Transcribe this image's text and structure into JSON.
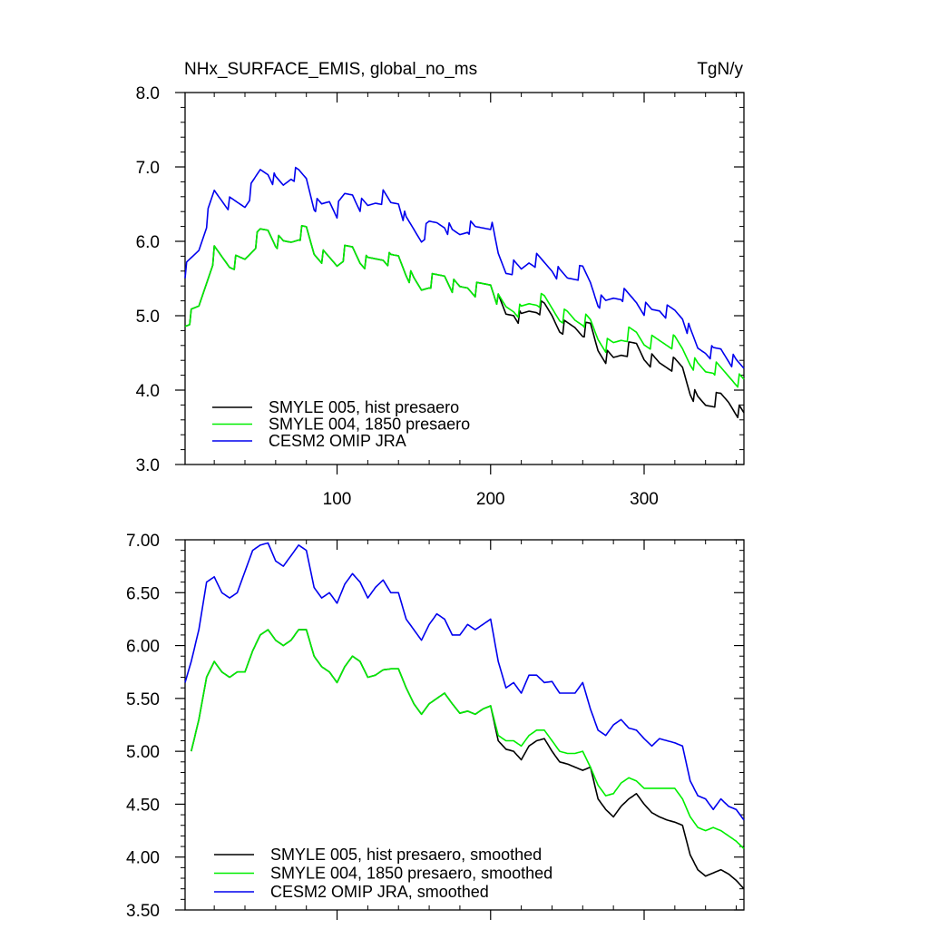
{
  "chart_data": [
    {
      "type": "line",
      "title": "NHx_SURFACE_EMIS, global_no_ms",
      "units": "TgN/y",
      "xlim": [
        1,
        365
      ],
      "ylim": [
        3.0,
        8.0
      ],
      "xticks": [
        100,
        200,
        300
      ],
      "xtick_labels": [
        "100",
        "200",
        "300"
      ],
      "yticks": [
        3.0,
        4.0,
        5.0,
        6.0,
        7.0,
        8.0
      ],
      "ytick_labels": [
        "3.0",
        "4.0",
        "5.0",
        "6.0",
        "7.0",
        "8.0"
      ],
      "legend_position": "bottom-left",
      "noise": 0.1,
      "series": [
        {
          "name": "SMYLE 005, hist presaero",
          "color": "#000000",
          "x": [
            1,
            10,
            20,
            30,
            40,
            50,
            55,
            60,
            65,
            70,
            75,
            80,
            85,
            90,
            95,
            100,
            105,
            110,
            115,
            120,
            125,
            130,
            135,
            140,
            145,
            150,
            155,
            160,
            165,
            170,
            175,
            180,
            185,
            190,
            195,
            200,
            205,
            210,
            215,
            220,
            225,
            230,
            235,
            240,
            245,
            250,
            255,
            260,
            265,
            270,
            275,
            280,
            285,
            290,
            295,
            300,
            305,
            310,
            315,
            320,
            325,
            330,
            335,
            340,
            345,
            350,
            355,
            360,
            365
          ],
          "y": [
            4.9,
            5.1,
            5.85,
            5.7,
            5.75,
            6.1,
            6.15,
            6.0,
            5.95,
            6.0,
            6.1,
            6.15,
            5.85,
            5.8,
            5.75,
            5.7,
            5.85,
            5.9,
            5.75,
            5.7,
            5.75,
            5.8,
            5.75,
            5.8,
            5.6,
            5.45,
            5.35,
            5.45,
            5.5,
            5.55,
            5.4,
            5.35,
            5.4,
            5.35,
            5.4,
            5.45,
            5.2,
            5.0,
            5.05,
            4.95,
            5.05,
            5.1,
            5.1,
            5.0,
            4.85,
            4.85,
            4.85,
            4.8,
            4.85,
            4.55,
            4.45,
            4.4,
            4.5,
            4.55,
            4.6,
            4.45,
            4.4,
            4.35,
            4.35,
            4.35,
            4.3,
            4.0,
            3.85,
            3.8,
            3.85,
            3.9,
            3.85,
            3.75,
            3.65
          ]
        },
        {
          "name": "SMYLE 004, 1850 presaero",
          "color": "#00ee00",
          "x": [
            1,
            10,
            20,
            30,
            40,
            50,
            55,
            60,
            65,
            70,
            75,
            80,
            85,
            90,
            95,
            100,
            105,
            110,
            115,
            120,
            125,
            130,
            135,
            140,
            145,
            150,
            155,
            160,
            165,
            170,
            175,
            180,
            185,
            190,
            195,
            200,
            205,
            210,
            215,
            220,
            225,
            230,
            235,
            240,
            245,
            250,
            255,
            260,
            265,
            270,
            275,
            280,
            285,
            290,
            295,
            300,
            305,
            310,
            315,
            320,
            325,
            330,
            335,
            340,
            345,
            350,
            355,
            360,
            365
          ],
          "y": [
            4.9,
            5.1,
            5.85,
            5.7,
            5.75,
            6.1,
            6.15,
            6.0,
            5.95,
            6.0,
            6.1,
            6.15,
            5.85,
            5.8,
            5.75,
            5.7,
            5.85,
            5.9,
            5.75,
            5.7,
            5.75,
            5.8,
            5.75,
            5.8,
            5.6,
            5.45,
            5.35,
            5.45,
            5.5,
            5.55,
            5.4,
            5.35,
            5.4,
            5.35,
            5.4,
            5.45,
            5.2,
            5.1,
            5.1,
            5.05,
            5.15,
            5.2,
            5.2,
            5.1,
            5.0,
            5.0,
            4.95,
            4.95,
            4.9,
            4.7,
            4.6,
            4.6,
            4.7,
            4.75,
            4.75,
            4.65,
            4.65,
            4.65,
            4.65,
            4.65,
            4.55,
            4.4,
            4.3,
            4.25,
            4.3,
            4.25,
            4.2,
            4.15,
            4.1
          ]
        },
        {
          "name": "CESM2 OMIP JRA",
          "color": "#0000ee",
          "x": [
            1,
            10,
            20,
            30,
            40,
            50,
            55,
            60,
            65,
            70,
            75,
            80,
            85,
            90,
            95,
            100,
            105,
            110,
            115,
            120,
            125,
            130,
            135,
            140,
            145,
            150,
            155,
            160,
            165,
            170,
            175,
            180,
            185,
            190,
            195,
            200,
            205,
            210,
            215,
            220,
            225,
            230,
            235,
            240,
            245,
            250,
            255,
            260,
            265,
            270,
            275,
            280,
            285,
            290,
            295,
            300,
            305,
            310,
            315,
            320,
            325,
            330,
            335,
            340,
            345,
            350,
            355,
            360,
            365
          ],
          "y": [
            5.6,
            5.9,
            6.65,
            6.5,
            6.5,
            6.95,
            6.95,
            6.8,
            6.75,
            6.9,
            6.9,
            6.85,
            6.5,
            6.45,
            6.55,
            6.4,
            6.6,
            6.65,
            6.5,
            6.45,
            6.55,
            6.6,
            6.5,
            6.55,
            6.25,
            6.15,
            6.05,
            6.2,
            6.25,
            6.25,
            6.1,
            6.1,
            6.2,
            6.15,
            6.2,
            6.25,
            5.8,
            5.6,
            5.65,
            5.6,
            5.75,
            5.75,
            5.7,
            5.65,
            5.55,
            5.5,
            5.55,
            5.6,
            5.45,
            5.2,
            5.15,
            5.25,
            5.3,
            5.25,
            5.2,
            5.1,
            5.05,
            5.1,
            5.05,
            5.05,
            5.0,
            4.75,
            4.55,
            4.55,
            4.5,
            4.55,
            4.45,
            4.35,
            4.3
          ]
        }
      ]
    },
    {
      "type": "line",
      "title": "",
      "xlim": [
        1,
        365
      ],
      "ylim": [
        3.5,
        7.0
      ],
      "xticks": [
        100,
        200,
        300
      ],
      "xtick_labels": [
        "",
        "",
        ""
      ],
      "yticks": [
        3.5,
        4.0,
        4.5,
        5.0,
        5.5,
        6.0,
        6.5,
        7.0
      ],
      "ytick_labels": [
        "3.50",
        "4.00",
        "4.50",
        "5.00",
        "5.50",
        "6.00",
        "6.50",
        "7.00"
      ],
      "legend_position": "bottom-left",
      "noise": 0.0,
      "series": [
        {
          "name": "SMYLE 005, hist presaero, smoothed",
          "color": "#000000",
          "x": [
            5,
            10,
            15,
            20,
            25,
            30,
            35,
            40,
            45,
            50,
            55,
            60,
            65,
            70,
            75,
            80,
            85,
            90,
            95,
            100,
            105,
            110,
            115,
            120,
            125,
            130,
            135,
            140,
            145,
            150,
            155,
            160,
            165,
            170,
            175,
            180,
            185,
            190,
            195,
            200,
            205,
            210,
            215,
            220,
            225,
            230,
            235,
            240,
            245,
            250,
            255,
            260,
            265,
            270,
            275,
            280,
            285,
            290,
            295,
            300,
            305,
            310,
            315,
            320,
            325,
            330,
            335,
            340,
            345,
            350,
            355,
            360,
            365
          ],
          "y": [
            5.0,
            5.3,
            5.7,
            5.85,
            5.75,
            5.7,
            5.75,
            5.75,
            5.95,
            6.1,
            6.15,
            6.05,
            6.0,
            6.05,
            6.15,
            6.15,
            5.9,
            5.8,
            5.75,
            5.65,
            5.8,
            5.9,
            5.85,
            5.7,
            5.72,
            5.77,
            5.78,
            5.78,
            5.6,
            5.45,
            5.35,
            5.45,
            5.5,
            5.55,
            5.45,
            5.36,
            5.38,
            5.35,
            5.4,
            5.43,
            5.1,
            5.02,
            5.0,
            4.92,
            5.05,
            5.1,
            5.12,
            5.0,
            4.9,
            4.88,
            4.85,
            4.82,
            4.85,
            4.55,
            4.45,
            4.38,
            4.48,
            4.55,
            4.6,
            4.5,
            4.42,
            4.38,
            4.35,
            4.33,
            4.3,
            4.02,
            3.88,
            3.82,
            3.85,
            3.88,
            3.84,
            3.78,
            3.7
          ]
        },
        {
          "name": "SMYLE 004, 1850 presaero, smoothed",
          "color": "#00ee00",
          "x": [
            5,
            10,
            15,
            20,
            25,
            30,
            35,
            40,
            45,
            50,
            55,
            60,
            65,
            70,
            75,
            80,
            85,
            90,
            95,
            100,
            105,
            110,
            115,
            120,
            125,
            130,
            135,
            140,
            145,
            150,
            155,
            160,
            165,
            170,
            175,
            180,
            185,
            190,
            195,
            200,
            205,
            210,
            215,
            220,
            225,
            230,
            235,
            240,
            245,
            250,
            255,
            260,
            265,
            270,
            275,
            280,
            285,
            290,
            295,
            300,
            305,
            310,
            315,
            320,
            325,
            330,
            335,
            340,
            345,
            350,
            355,
            360,
            365
          ],
          "y": [
            5.0,
            5.3,
            5.7,
            5.85,
            5.75,
            5.7,
            5.75,
            5.75,
            5.95,
            6.1,
            6.15,
            6.05,
            6.0,
            6.05,
            6.15,
            6.15,
            5.9,
            5.8,
            5.75,
            5.65,
            5.8,
            5.9,
            5.85,
            5.7,
            5.72,
            5.77,
            5.78,
            5.78,
            5.6,
            5.45,
            5.35,
            5.45,
            5.5,
            5.55,
            5.45,
            5.36,
            5.38,
            5.35,
            5.4,
            5.43,
            5.15,
            5.1,
            5.1,
            5.05,
            5.15,
            5.2,
            5.2,
            5.1,
            5.0,
            4.98,
            4.98,
            5.0,
            4.85,
            4.68,
            4.58,
            4.6,
            4.7,
            4.75,
            4.72,
            4.65,
            4.65,
            4.65,
            4.65,
            4.65,
            4.55,
            4.38,
            4.28,
            4.25,
            4.28,
            4.25,
            4.2,
            4.15,
            4.08
          ]
        },
        {
          "name": "CESM2 OMIP JRA, smoothed",
          "color": "#0000ee",
          "x": [
            1,
            5,
            10,
            15,
            20,
            25,
            30,
            35,
            40,
            45,
            50,
            55,
            60,
            65,
            70,
            75,
            80,
            85,
            90,
            95,
            100,
            105,
            110,
            115,
            120,
            125,
            130,
            135,
            140,
            145,
            150,
            155,
            160,
            165,
            170,
            175,
            180,
            185,
            190,
            195,
            200,
            205,
            210,
            215,
            220,
            225,
            230,
            235,
            240,
            245,
            250,
            255,
            260,
            265,
            270,
            275,
            280,
            285,
            290,
            295,
            300,
            305,
            310,
            315,
            320,
            325,
            330,
            335,
            340,
            345,
            350,
            355,
            360,
            365
          ],
          "y": [
            5.65,
            5.85,
            6.15,
            6.6,
            6.65,
            6.5,
            6.45,
            6.5,
            6.7,
            6.9,
            6.95,
            6.97,
            6.8,
            6.75,
            6.85,
            6.95,
            6.9,
            6.55,
            6.45,
            6.5,
            6.4,
            6.58,
            6.68,
            6.6,
            6.45,
            6.55,
            6.62,
            6.5,
            6.5,
            6.25,
            6.15,
            6.05,
            6.2,
            6.3,
            6.25,
            6.1,
            6.1,
            6.2,
            6.15,
            6.2,
            6.25,
            5.85,
            5.6,
            5.65,
            5.55,
            5.72,
            5.72,
            5.65,
            5.66,
            5.55,
            5.55,
            5.55,
            5.65,
            5.4,
            5.2,
            5.15,
            5.25,
            5.3,
            5.22,
            5.2,
            5.12,
            5.05,
            5.12,
            5.1,
            5.08,
            5.05,
            4.72,
            4.58,
            4.55,
            4.45,
            4.55,
            4.48,
            4.45,
            4.35
          ]
        }
      ]
    }
  ]
}
